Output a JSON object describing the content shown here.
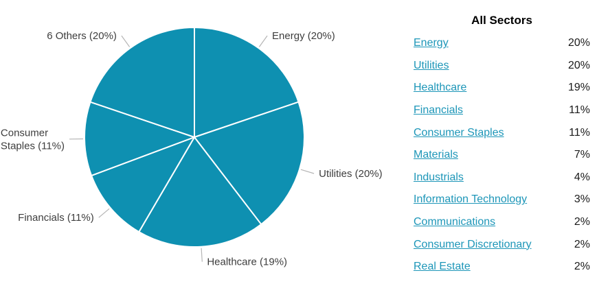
{
  "panel": {
    "title": "All Sectors",
    "rows": [
      {
        "label": "Energy",
        "value": "20%"
      },
      {
        "label": "Utilities",
        "value": "20%"
      },
      {
        "label": "Healthcare",
        "value": "19%"
      },
      {
        "label": "Financials",
        "value": "11%"
      },
      {
        "label": "Consumer Staples",
        "value": "11%"
      },
      {
        "label": "Materials",
        "value": "7%"
      },
      {
        "label": "Industrials",
        "value": "4%"
      },
      {
        "label": "Information Technology",
        "value": "3%"
      },
      {
        "label": "Communications",
        "value": "2%"
      },
      {
        "label": "Consumer Discretionary",
        "value": "2%"
      },
      {
        "label": "Real Estate",
        "value": "2%"
      }
    ]
  },
  "chart_data": {
    "type": "pie",
    "title": "",
    "unit": "%",
    "start_angle_deg": -90,
    "direction": "clockwise",
    "legend_position": "none",
    "center": [
      283,
      200
    ],
    "radius": 160,
    "slice_color": "#0e90b1",
    "divider_color": "#ffffff",
    "leader_line_color": "#b5b5b5",
    "label_color": "#3d3d3d",
    "slices": [
      {
        "name": "Energy",
        "value": 20,
        "label": "Energy (20%)"
      },
      {
        "name": "Utilities",
        "value": 20,
        "label": "Utilities (20%)"
      },
      {
        "name": "Healthcare",
        "value": 19,
        "label": "Healthcare (19%)"
      },
      {
        "name": "Financials",
        "value": 11,
        "label": "Financials (11%)"
      },
      {
        "name": "Consumer Staples",
        "value": 11,
        "label": [
          "Consumer",
          "Staples (11%)"
        ]
      },
      {
        "name": "6 Others",
        "value": 20,
        "label": "6 Others (20%)"
      }
    ]
  },
  "colors": {
    "accent_teal": "#0e90b1",
    "link": "#1d96b8",
    "text_dark": "#1a1a1a",
    "label_gray": "#3d3d3d",
    "leader_gray": "#b5b5b5",
    "background": "#ffffff"
  }
}
